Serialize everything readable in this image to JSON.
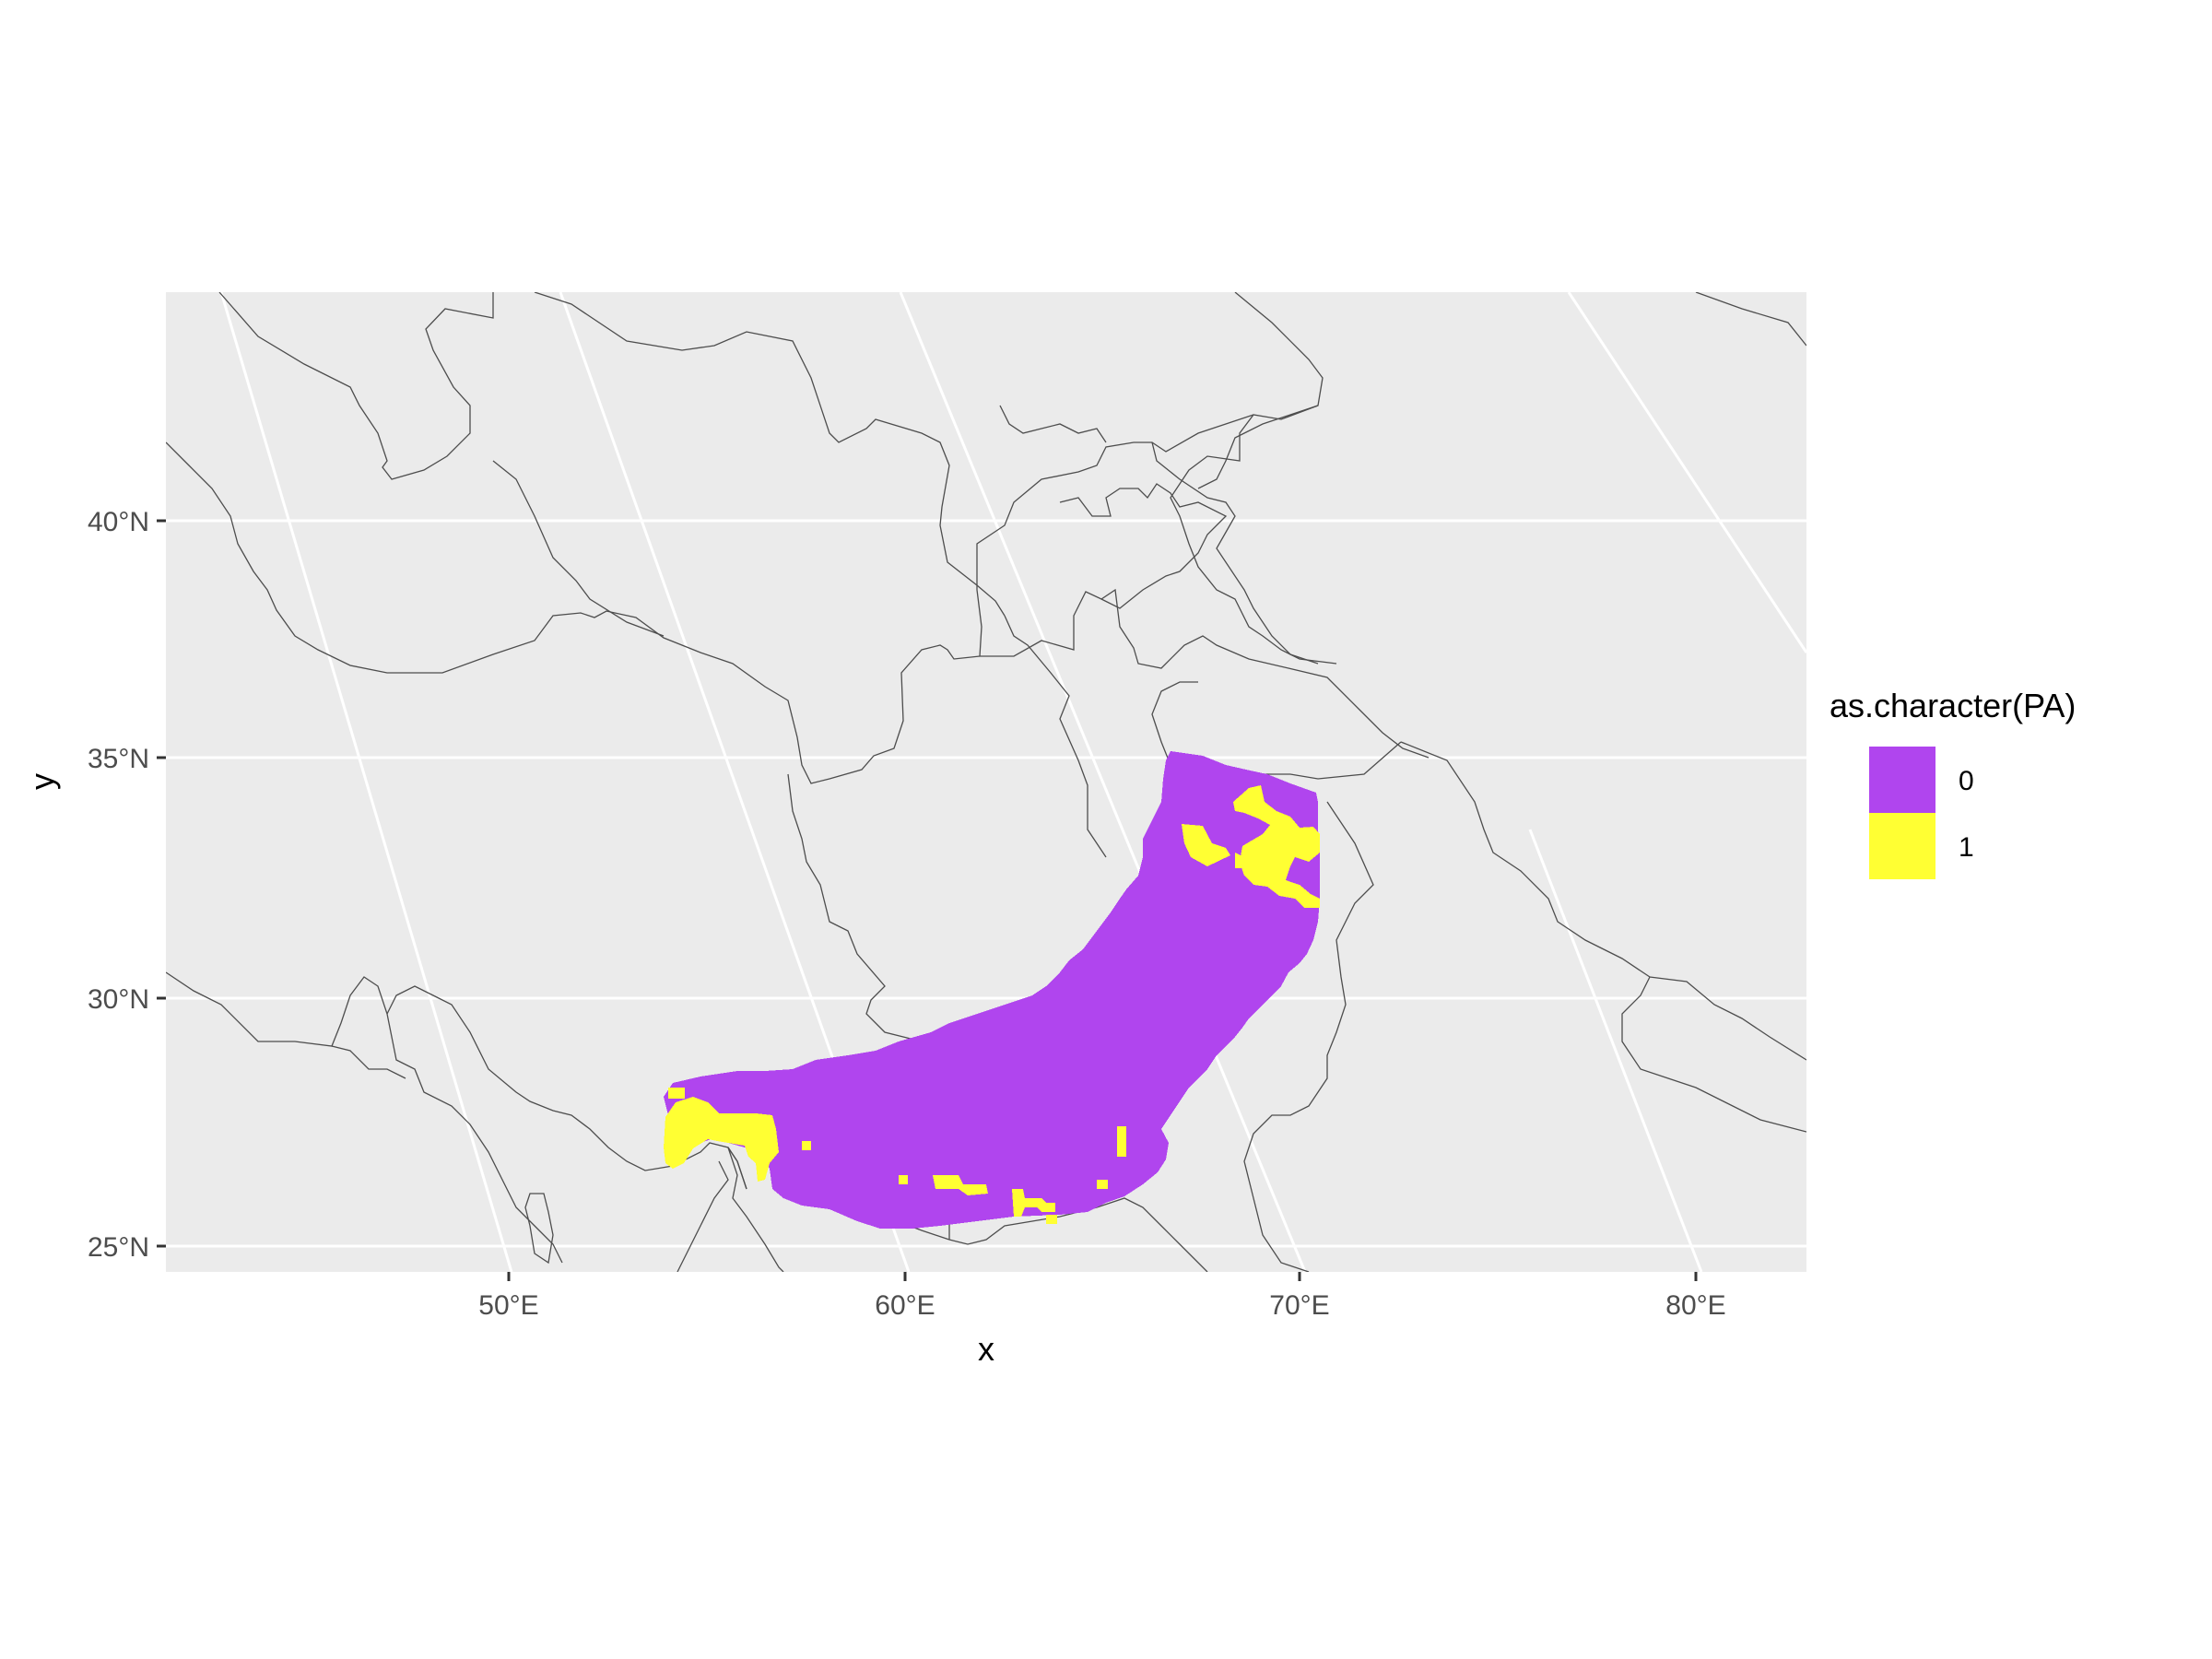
{
  "chart_data": {
    "type": "heatmap",
    "kind": "raster map",
    "title": "",
    "xlabel": "x",
    "ylabel": "y",
    "x_ticks": [
      "50°E",
      "60°E",
      "70°E",
      "80°E"
    ],
    "x_tick_values": [
      50,
      60,
      70,
      80
    ],
    "y_ticks": [
      "25°N",
      "30°N",
      "35°N",
      "40°N"
    ],
    "y_tick_values": [
      25,
      30,
      35,
      40
    ],
    "xlim": [
      41.5,
      82.8
    ],
    "ylim": [
      24.5,
      44.5
    ],
    "grid": true,
    "legend": {
      "title": "as.character(PA)",
      "position": "right",
      "entries": [
        {
          "label": "0",
          "color": "#b045ee"
        },
        {
          "label": "1",
          "color": "#ffff33"
        }
      ]
    },
    "colors": {
      "panel_background": "#ebebeb",
      "gridline": "#ffffff",
      "country_border": "#4d4d4d",
      "absence": "#b045ee",
      "presence": "#ffff33"
    },
    "raster_approx_extent": {
      "lon": [
        54.0,
        70.5
      ],
      "lat": [
        25.3,
        35.1
      ],
      "cell_size_deg": 0.25
    }
  }
}
